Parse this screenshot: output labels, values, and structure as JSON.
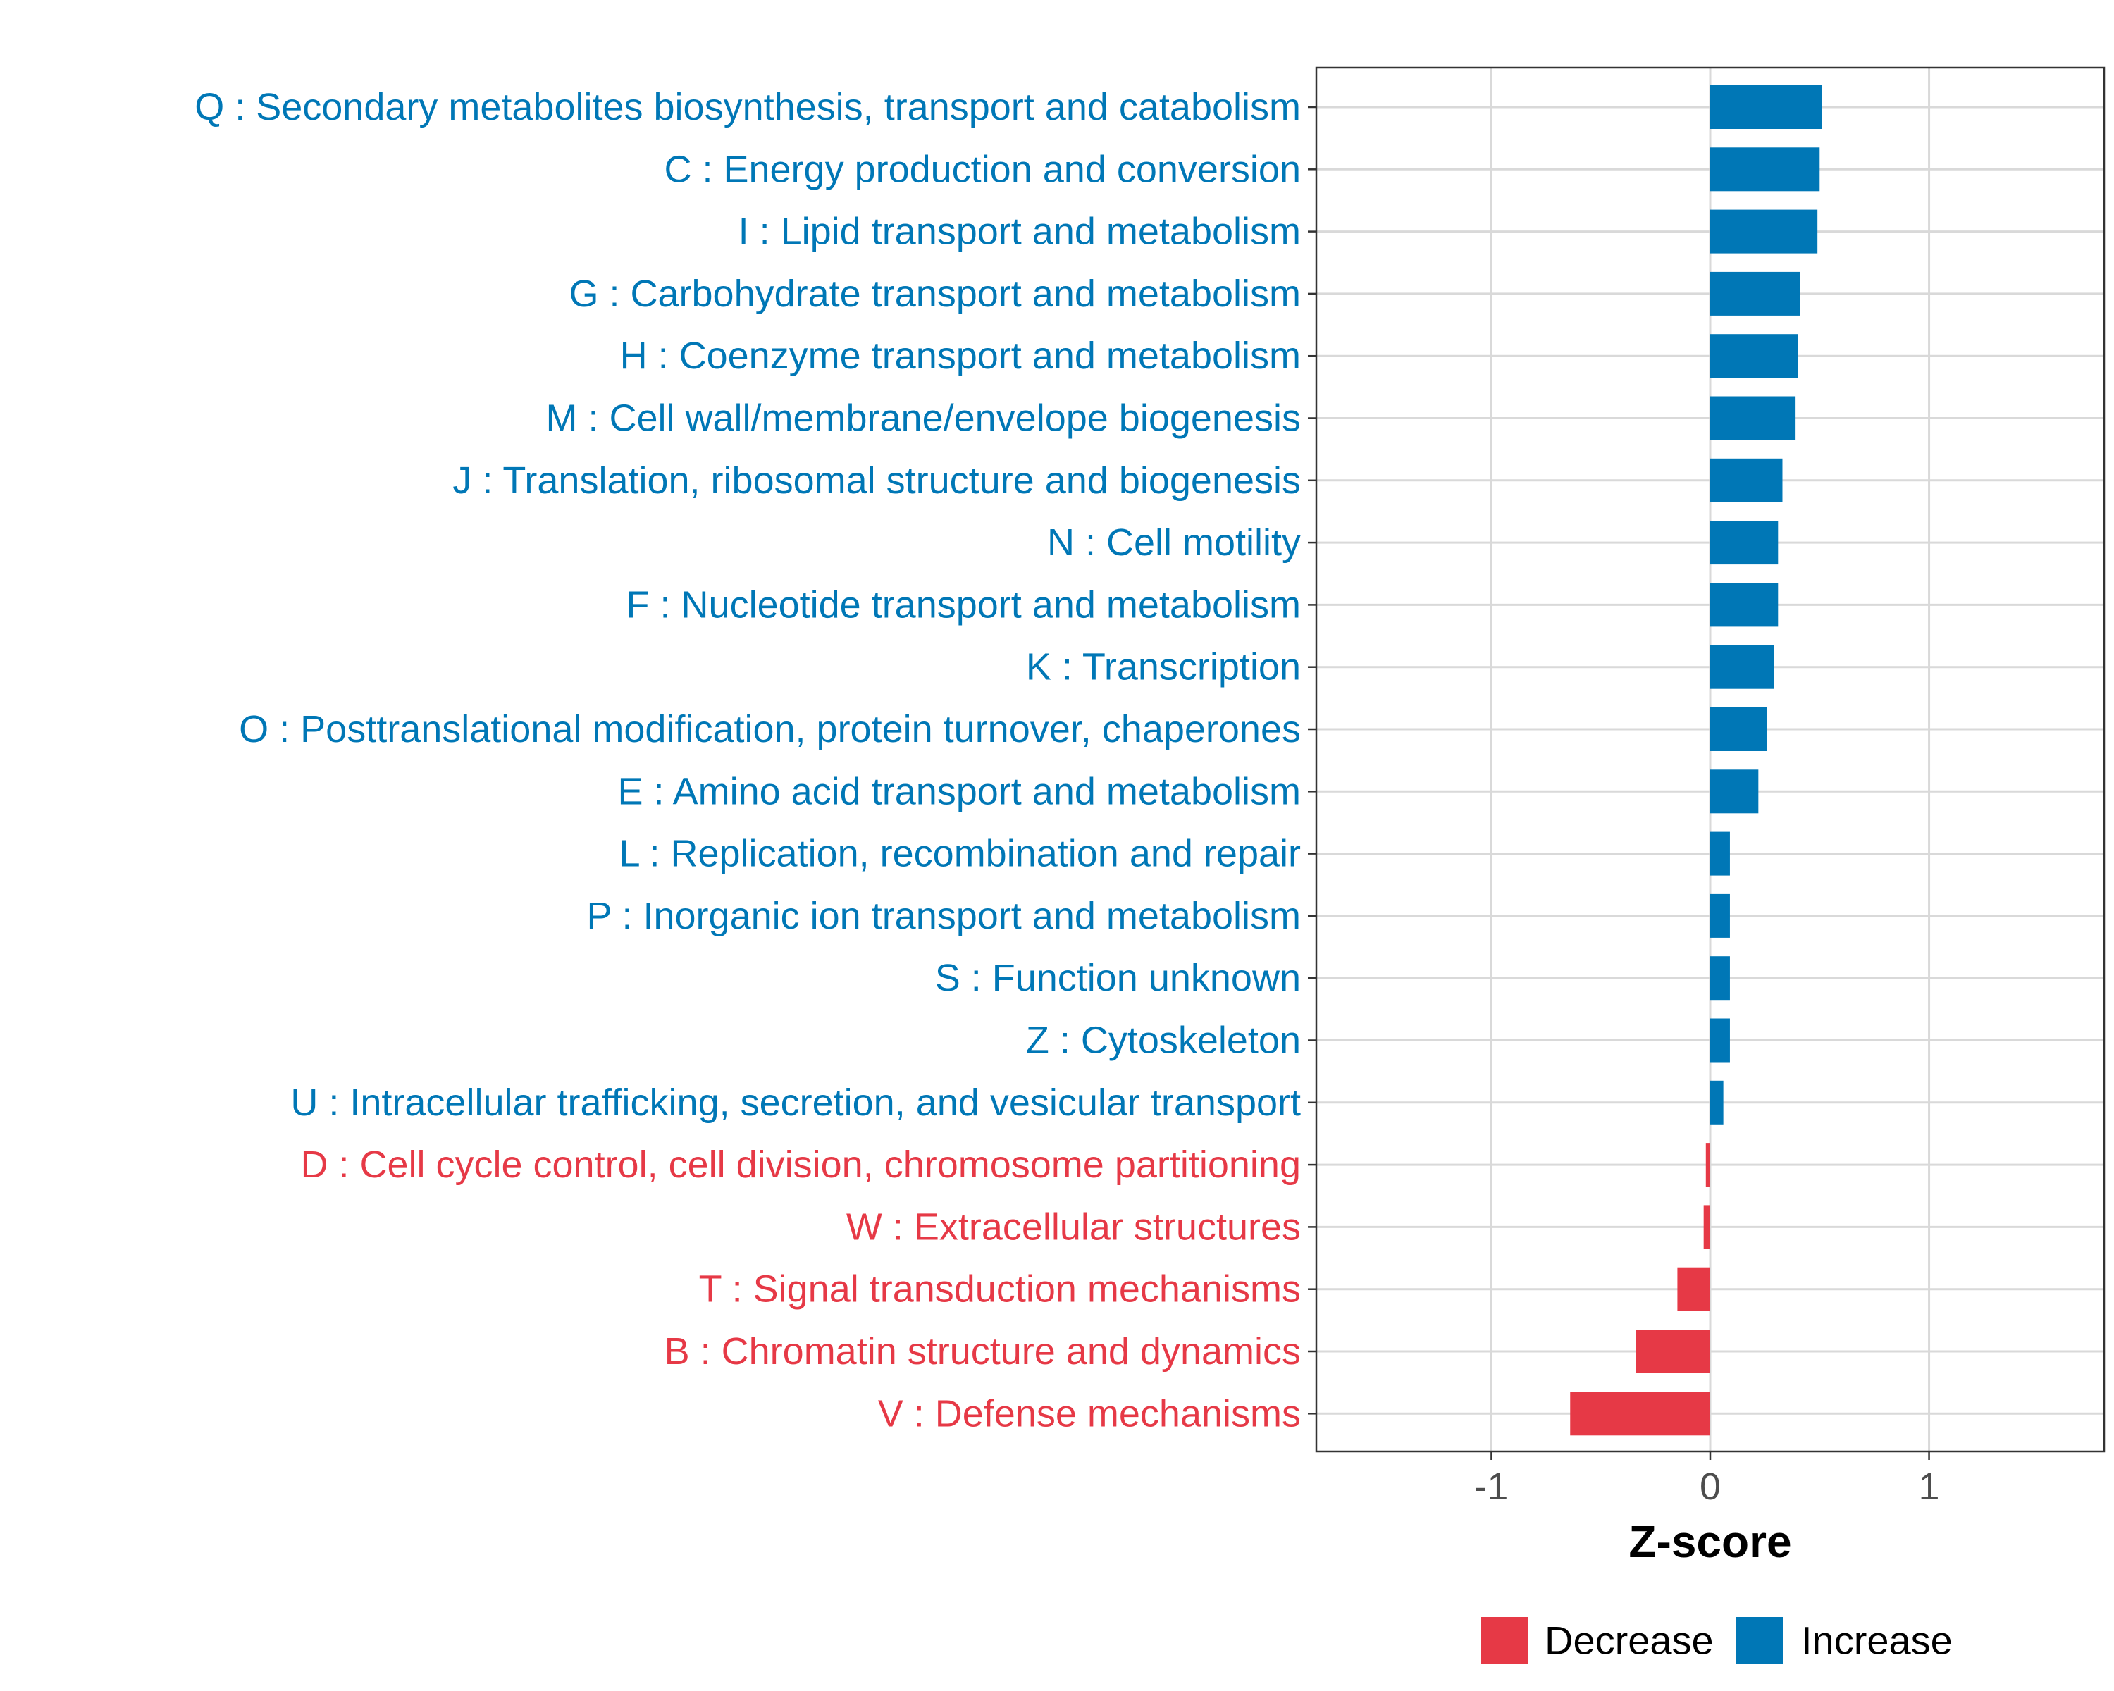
{
  "chart_data": {
    "type": "bar",
    "orientation": "horizontal",
    "xlabel": "Z-score",
    "ylabel": "",
    "xlim": [
      -1.8,
      1.8
    ],
    "xticks": [
      -1,
      0,
      1
    ],
    "xtick_labels": [
      "-1",
      "0",
      "1"
    ],
    "grid": true,
    "colors": {
      "Decrease": "#e63946",
      "Increase": "#0077b6"
    },
    "legend": {
      "position": "bottom",
      "entries": [
        "Decrease",
        "Increase"
      ]
    },
    "categories": [
      "Q : Secondary metabolites biosynthesis, transport and catabolism",
      "C : Energy production and conversion",
      "I : Lipid transport and metabolism",
      "G : Carbohydrate transport and metabolism",
      "H : Coenzyme transport and metabolism",
      "M : Cell wall/membrane/envelope biogenesis",
      "J : Translation, ribosomal structure and biogenesis",
      "N : Cell motility",
      "F : Nucleotide transport and metabolism",
      "K : Transcription",
      "O : Posttranslational modification, protein turnover, chaperones",
      "E : Amino acid transport and metabolism",
      "L : Replication, recombination and repair",
      "P : Inorganic ion transport and metabolism",
      "S : Function unknown",
      "Z : Cytoskeleton",
      "U : Intracellular trafficking, secretion, and vesicular transport",
      "D : Cell cycle control, cell division, chromosome partitioning",
      "W : Extracellular structures",
      "T : Signal transduction mechanisms",
      "B : Chromatin structure and dynamics",
      "V : Defense mechanisms"
    ],
    "values": [
      0.51,
      0.5,
      0.49,
      0.41,
      0.4,
      0.39,
      0.33,
      0.31,
      0.31,
      0.29,
      0.26,
      0.22,
      0.09,
      0.09,
      0.09,
      0.09,
      0.06,
      -0.02,
      -0.03,
      -0.15,
      -0.34,
      -0.64
    ],
    "groups": [
      "Increase",
      "Increase",
      "Increase",
      "Increase",
      "Increase",
      "Increase",
      "Increase",
      "Increase",
      "Increase",
      "Increase",
      "Increase",
      "Increase",
      "Increase",
      "Increase",
      "Increase",
      "Increase",
      "Increase",
      "Decrease",
      "Decrease",
      "Decrease",
      "Decrease",
      "Decrease"
    ]
  }
}
